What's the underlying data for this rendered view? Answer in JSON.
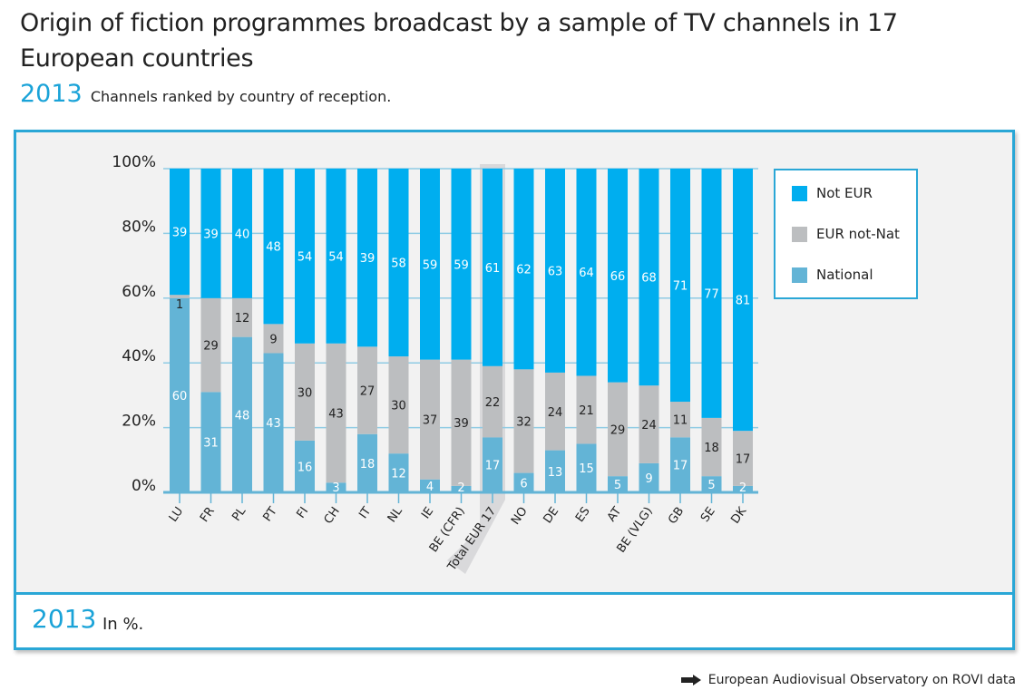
{
  "header": {
    "title": "Origin of fiction programmes broadcast by a  sample of TV  channels in 17 European countries",
    "year": "2013",
    "subtitle": "Channels ranked by country of reception."
  },
  "footer_box": {
    "year": "2013",
    "unit": "In %."
  },
  "source": {
    "icon": "arrow-right-icon",
    "text": "European Audiovisual Observatory on ROVI data"
  },
  "colors": {
    "not_eur": "#00aeef",
    "eur_not_nat": "#bcbec0",
    "national": "#63b4d6",
    "accent": "#2aa7d6",
    "highlight": "#d9d9db"
  },
  "chart_data": {
    "type": "bar",
    "stacked": true,
    "categories": [
      "LU",
      "FR",
      "PL",
      "PT",
      "FI",
      "CH",
      "IT",
      "NL",
      "IE",
      "BE (CFR)",
      "Total EUR 17",
      "NO",
      "DE",
      "ES",
      "AT",
      "BE (VLG)",
      "GB",
      "SE",
      "DK"
    ],
    "highlighted_category": "Total EUR 17",
    "series": [
      {
        "name": "National",
        "values": [
          60,
          31,
          48,
          43,
          16,
          3,
          18,
          12,
          4,
          2,
          17,
          6,
          13,
          15,
          5,
          9,
          17,
          5,
          2
        ]
      },
      {
        "name": "EUR not-Nat",
        "values": [
          1,
          29,
          12,
          9,
          30,
          43,
          27,
          30,
          37,
          39,
          22,
          32,
          24,
          21,
          29,
          24,
          11,
          18,
          17
        ]
      },
      {
        "name": "Not EUR",
        "values": [
          39,
          39,
          40,
          48,
          54,
          54,
          39,
          58,
          59,
          59,
          61,
          62,
          63,
          64,
          66,
          68,
          71,
          77,
          81
        ]
      }
    ],
    "yticks": [
      "0%",
      "20%",
      "40%",
      "60%",
      "80%",
      "100%"
    ],
    "ylim": [
      0,
      100
    ],
    "grid": true,
    "legend": "top-right"
  }
}
